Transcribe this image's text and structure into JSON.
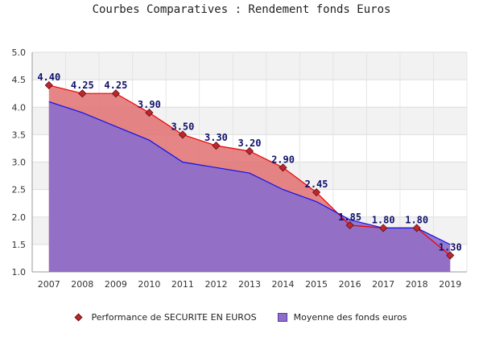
{
  "chart_data": {
    "type": "area",
    "title": "Courbes Comparatives : Rendement fonds Euros",
    "xlabel": "",
    "ylabel": "",
    "categories": [
      "2007",
      "2008",
      "2009",
      "2010",
      "2011",
      "2012",
      "2013",
      "2014",
      "2015",
      "2016",
      "2017",
      "2018",
      "2019"
    ],
    "ylim": [
      1.0,
      5.0
    ],
    "yticks": [
      "1.0",
      "1.5",
      "2.0",
      "2.5",
      "3.0",
      "3.5",
      "4.0",
      "4.5",
      "5.0"
    ],
    "grid": "horizontal bands",
    "legend_position": "bottom",
    "series": [
      {
        "name": "Performance de SECURITE EN EUROS",
        "values": [
          4.4,
          4.25,
          4.25,
          3.9,
          3.5,
          3.3,
          3.2,
          2.9,
          2.45,
          1.85,
          1.8,
          1.8,
          1.3
        ],
        "labels": [
          "4.40",
          "4.25",
          "4.25",
          "3.90",
          "3.50",
          "3.30",
          "3.20",
          "2.90",
          "2.45",
          "1.85",
          "1.80",
          "1.80",
          "1.30"
        ],
        "line_color": "#ee0000",
        "fill_color": "#e07070",
        "marker_color": "#c0272d"
      },
      {
        "name": "Moyenne des fonds euros",
        "values": [
          4.1,
          3.9,
          3.65,
          3.4,
          3.0,
          2.9,
          2.8,
          2.5,
          2.28,
          1.95,
          1.8,
          1.8,
          1.5
        ],
        "line_color": "#1010ee",
        "fill_color": "#8c6fcb"
      }
    ]
  }
}
